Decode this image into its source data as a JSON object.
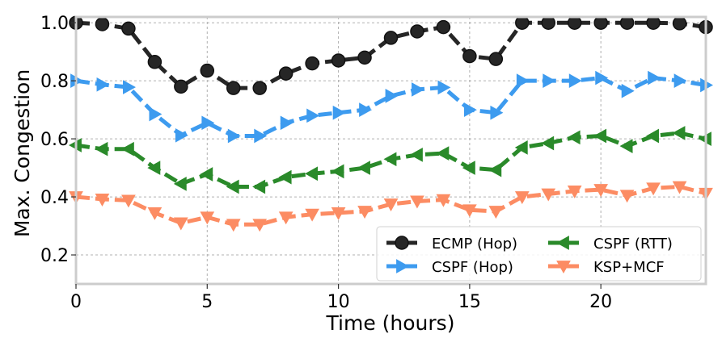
{
  "chart_data": {
    "type": "line",
    "xlabel": "Time (hours)",
    "ylabel": "Max. Congestion",
    "xlim": [
      0,
      24
    ],
    "ylim": [
      0.1,
      1.02
    ],
    "xticks": [
      0,
      5,
      10,
      15,
      20
    ],
    "yticks": [
      0.2,
      0.4,
      0.6,
      0.8,
      1.0
    ],
    "ytick_labels": [
      "0.2",
      "0.4",
      "0.6",
      "0.8",
      "1.0"
    ],
    "grid": true,
    "legend_position": "bottom-right",
    "x": [
      0,
      1,
      2,
      3,
      4,
      5,
      6,
      7,
      8,
      9,
      10,
      11,
      12,
      13,
      14,
      15,
      16,
      17,
      18,
      19,
      20,
      21,
      22,
      23,
      24
    ],
    "series": [
      {
        "name": "ECMP (Hop)",
        "color": "#262626",
        "marker": "circle",
        "values": [
          1.0,
          0.995,
          0.98,
          0.865,
          0.78,
          0.835,
          0.775,
          0.775,
          0.825,
          0.86,
          0.87,
          0.88,
          0.948,
          0.97,
          0.985,
          0.885,
          0.875,
          1.0,
          1.0,
          1.0,
          1.0,
          1.0,
          1.0,
          0.998,
          0.985
        ]
      },
      {
        "name": "CSPF (Hop)",
        "color": "#3d9bef",
        "marker": "triangle-right",
        "values": [
          0.8,
          0.787,
          0.778,
          0.685,
          0.612,
          0.655,
          0.61,
          0.61,
          0.655,
          0.68,
          0.69,
          0.7,
          0.748,
          0.77,
          0.777,
          0.7,
          0.69,
          0.8,
          0.8,
          0.8,
          0.81,
          0.765,
          0.81,
          0.8,
          0.785
        ]
      },
      {
        "name": "CSPF (RTT)",
        "color": "#2a8a2a",
        "marker": "triangle-left",
        "values": [
          0.578,
          0.565,
          0.565,
          0.5,
          0.445,
          0.478,
          0.435,
          0.435,
          0.468,
          0.48,
          0.488,
          0.5,
          0.53,
          0.545,
          0.55,
          0.5,
          0.493,
          0.57,
          0.585,
          0.605,
          0.61,
          0.575,
          0.61,
          0.62,
          0.6
        ]
      },
      {
        "name": "KSP+MCF",
        "color": "#fc8c63",
        "marker": "triangle-down",
        "values": [
          0.4,
          0.392,
          0.388,
          0.345,
          0.31,
          0.33,
          0.305,
          0.305,
          0.33,
          0.34,
          0.345,
          0.35,
          0.375,
          0.385,
          0.39,
          0.355,
          0.35,
          0.4,
          0.41,
          0.42,
          0.425,
          0.405,
          0.43,
          0.435,
          0.412
        ]
      }
    ]
  }
}
